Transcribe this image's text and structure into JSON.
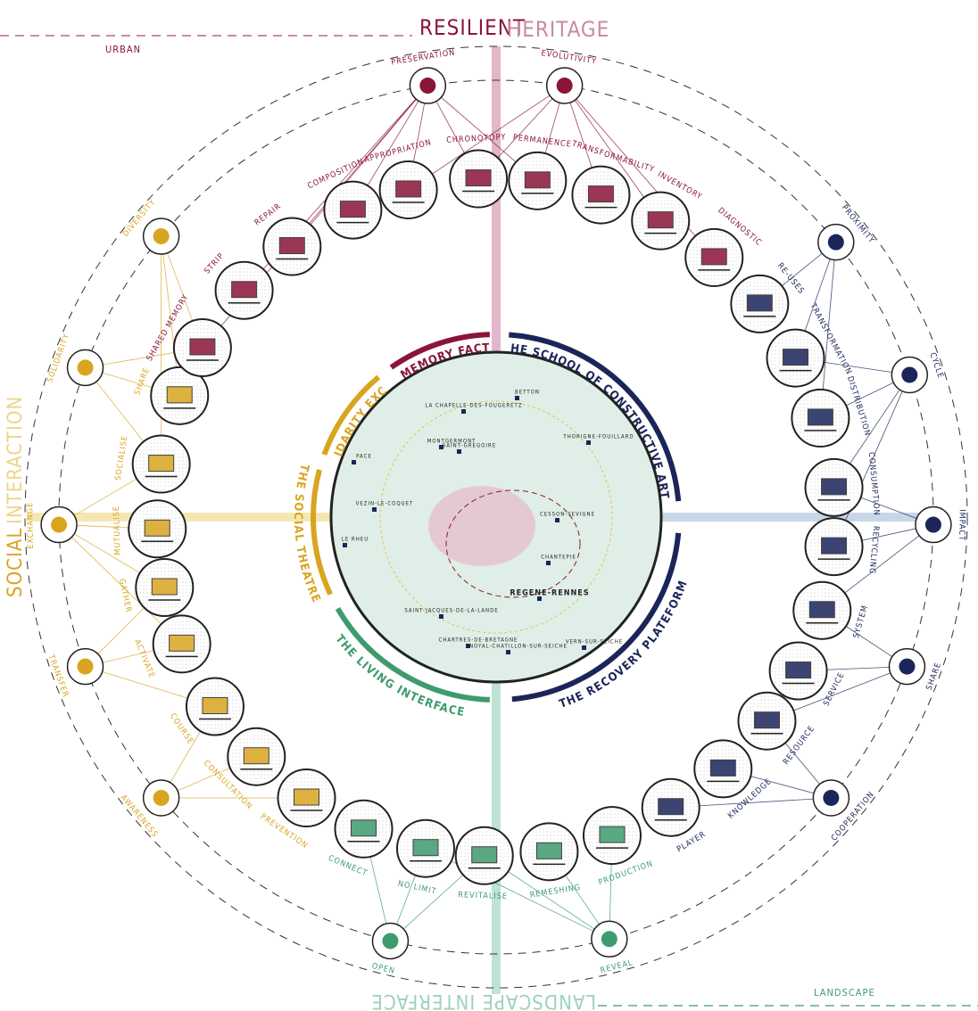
{
  "header": {
    "title_part1": "RESILIENT",
    "title_part2": "HERITAGE",
    "urban": "URBAN",
    "landscape": "LANDSCAPE",
    "social_part1": "SOCIAL",
    "social_part2": "INTERACTION",
    "bottom_mirrored": "LANDSCAPE INTERFACE"
  },
  "sectors": [
    {
      "label": "THE MEMORY FACTORY",
      "color": "#8a1538"
    },
    {
      "label": "THE SCHOOL OF CONSTRUCTIVE ARTS",
      "color": "#1b2559"
    },
    {
      "label": "THE RECOVERY PLATEFORM",
      "color": "#1b2559"
    },
    {
      "label": "THE LIVING INTERFACE",
      "color": "#3e9b6e"
    },
    {
      "label": "THE SOCIAL THEATRE",
      "color": "#d9a520"
    },
    {
      "label": "THE SOLIDARITY EXCHANGER",
      "color": "#d9a520"
    }
  ],
  "ring_nodes": [
    {
      "label": "CHRONOTOPY",
      "color": "#8a1538"
    },
    {
      "label": "PERMANENCE",
      "color": "#8a1538"
    },
    {
      "label": "TRANSFORMABILITY",
      "color": "#8a1538"
    },
    {
      "label": "INVENTORY",
      "color": "#8a1538"
    },
    {
      "label": "DIAGNOSTIC",
      "color": "#8a1538"
    },
    {
      "label": "RE-USES",
      "color": "#1b2559"
    },
    {
      "label": "TRANSFORMATION",
      "color": "#1b2559"
    },
    {
      "label": "DISTRIBUTION",
      "color": "#1b2559"
    },
    {
      "label": "CONSUMPTION",
      "color": "#1b2559"
    },
    {
      "label": "RECYCLING",
      "color": "#1b2559"
    },
    {
      "label": "SYSTEM",
      "color": "#1b2559"
    },
    {
      "label": "SERVICE",
      "color": "#1b2559"
    },
    {
      "label": "RESOURCE",
      "color": "#1b2559"
    },
    {
      "label": "KNOWLEDGE",
      "color": "#1b2559"
    },
    {
      "label": "PLAYER",
      "color": "#1b2559"
    },
    {
      "label": "PRODUCTION",
      "color": "#3e9b6e"
    },
    {
      "label": "REMESHING",
      "color": "#3e9b6e"
    },
    {
      "label": "REVITALISE",
      "color": "#3e9b6e"
    },
    {
      "label": "NO LIMIT",
      "color": "#3e9b6e"
    },
    {
      "label": "CONNECT",
      "color": "#3e9b6e"
    },
    {
      "label": "PREVENTION",
      "color": "#d9a520"
    },
    {
      "label": "CONSULTATION",
      "color": "#d9a520"
    },
    {
      "label": "COURSE",
      "color": "#d9a520"
    },
    {
      "label": "ACTIVATE",
      "color": "#d9a520"
    },
    {
      "label": "GATHER",
      "color": "#d9a520"
    },
    {
      "label": "MUTUALISE",
      "color": "#d9a520"
    },
    {
      "label": "SOCIALISE",
      "color": "#d9a520"
    },
    {
      "label": "SHARE",
      "color": "#d9a520"
    },
    {
      "label": "SHARED MEMORY",
      "color": "#8a1538"
    },
    {
      "label": "STRIP",
      "color": "#8a1538"
    },
    {
      "label": "REPAIR",
      "color": "#8a1538"
    },
    {
      "label": "COMPOSITION",
      "color": "#8a1538"
    },
    {
      "label": "APPROPRIATION",
      "color": "#8a1538"
    }
  ],
  "outer_nodes": [
    {
      "label": "PRESERVATION",
      "color": "#8a1538"
    },
    {
      "label": "EVOLUTIVITY",
      "color": "#8a1538"
    },
    {
      "label": "PROXIMITY",
      "color": "#1b2559"
    },
    {
      "label": "CYCLE",
      "color": "#1b2559"
    },
    {
      "label": "IMPACT",
      "color": "#1b2559"
    },
    {
      "label": "SHARE",
      "color": "#1b2559"
    },
    {
      "label": "COOPERATION",
      "color": "#1b2559"
    },
    {
      "label": "REVEAL",
      "color": "#3e9b6e"
    },
    {
      "label": "OPEN",
      "color": "#3e9b6e"
    },
    {
      "label": "AWARENESS",
      "color": "#d9a520"
    },
    {
      "label": "TRANSFER",
      "color": "#d9a520"
    },
    {
      "label": "EXCHANGE",
      "color": "#d9a520"
    },
    {
      "label": "SOLIDARITY",
      "color": "#d9a520"
    },
    {
      "label": "DIVERSITY",
      "color": "#d9a520"
    }
  ],
  "map_places": [
    "LA CHAPELLE-DES-FOUGERETZ",
    "BETTON",
    "MONTGERMONT",
    "SAINT-GREGOIRE",
    "THORIGNE-FOUILLARD",
    "PACE",
    "VEZIN-LE-COQUET",
    "CESSON-SEVIGNE",
    "LE RHEU",
    "CHANTEPIE",
    "REGENE-RENNES",
    "SAINT-JACQUES-DE-LA-LANDE",
    "CHARTRES-DE-BRETAGNE",
    "NOYAL-CHATILLON-SUR-SEICHE",
    "VERN-SUR-SEICHE"
  ]
}
